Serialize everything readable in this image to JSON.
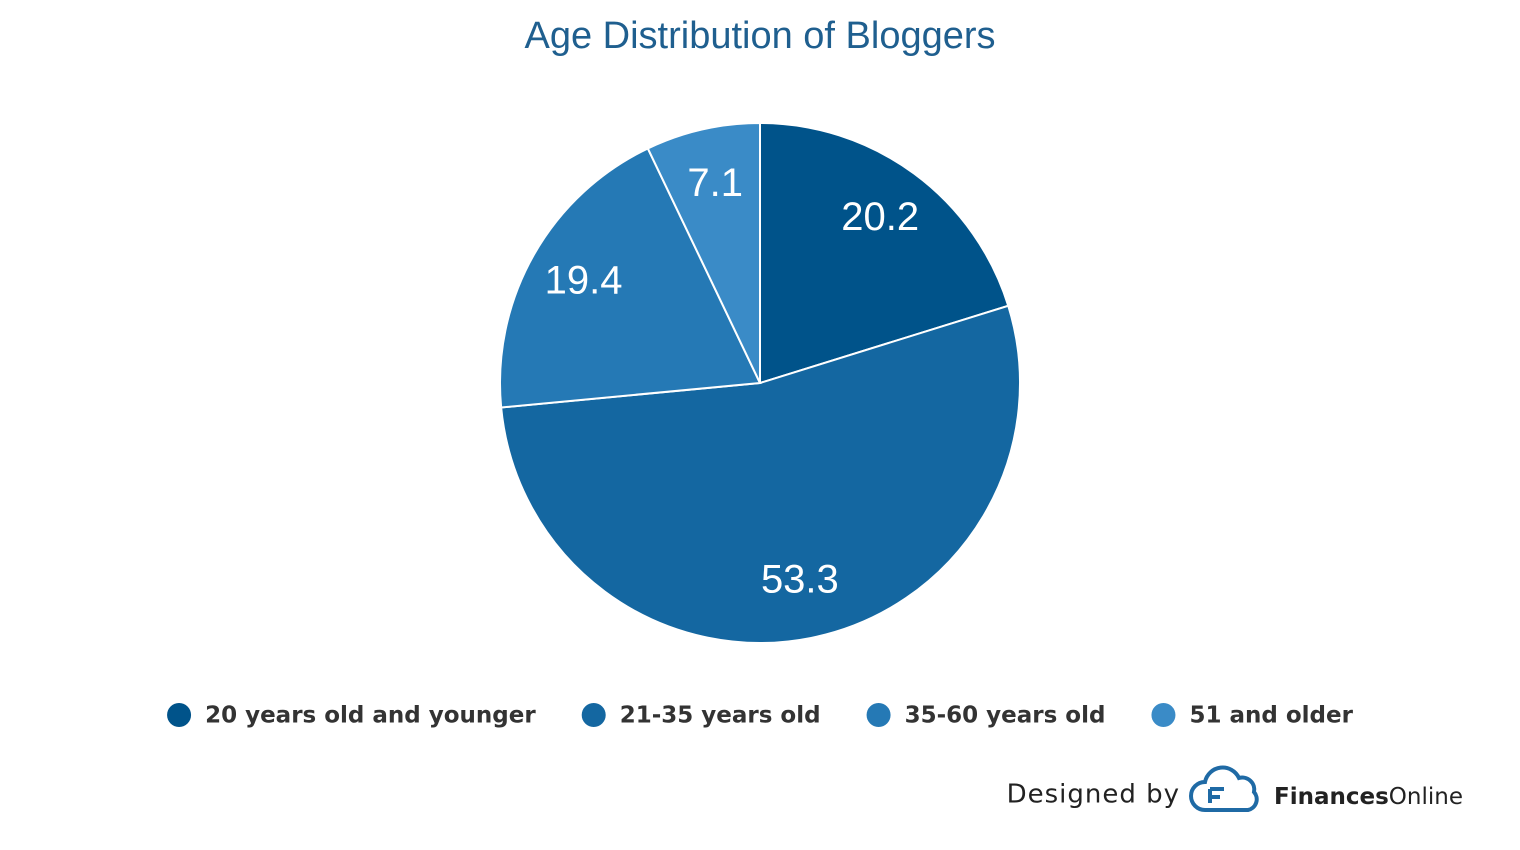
{
  "chart_data": {
    "type": "pie",
    "title": "Age Distribution of Bloggers",
    "categories": [
      "20 years old and younger",
      "21-35 years old",
      "35-60 years old",
      "51 and older"
    ],
    "values": [
      20.2,
      53.3,
      19.4,
      7.1
    ],
    "colors": [
      "#00538a",
      "#1467a1",
      "#2579b5",
      "#3a8bc7"
    ],
    "legend": "bottom"
  },
  "footer": {
    "label": "Designed by",
    "brand": [
      "Finances",
      "Online"
    ]
  }
}
